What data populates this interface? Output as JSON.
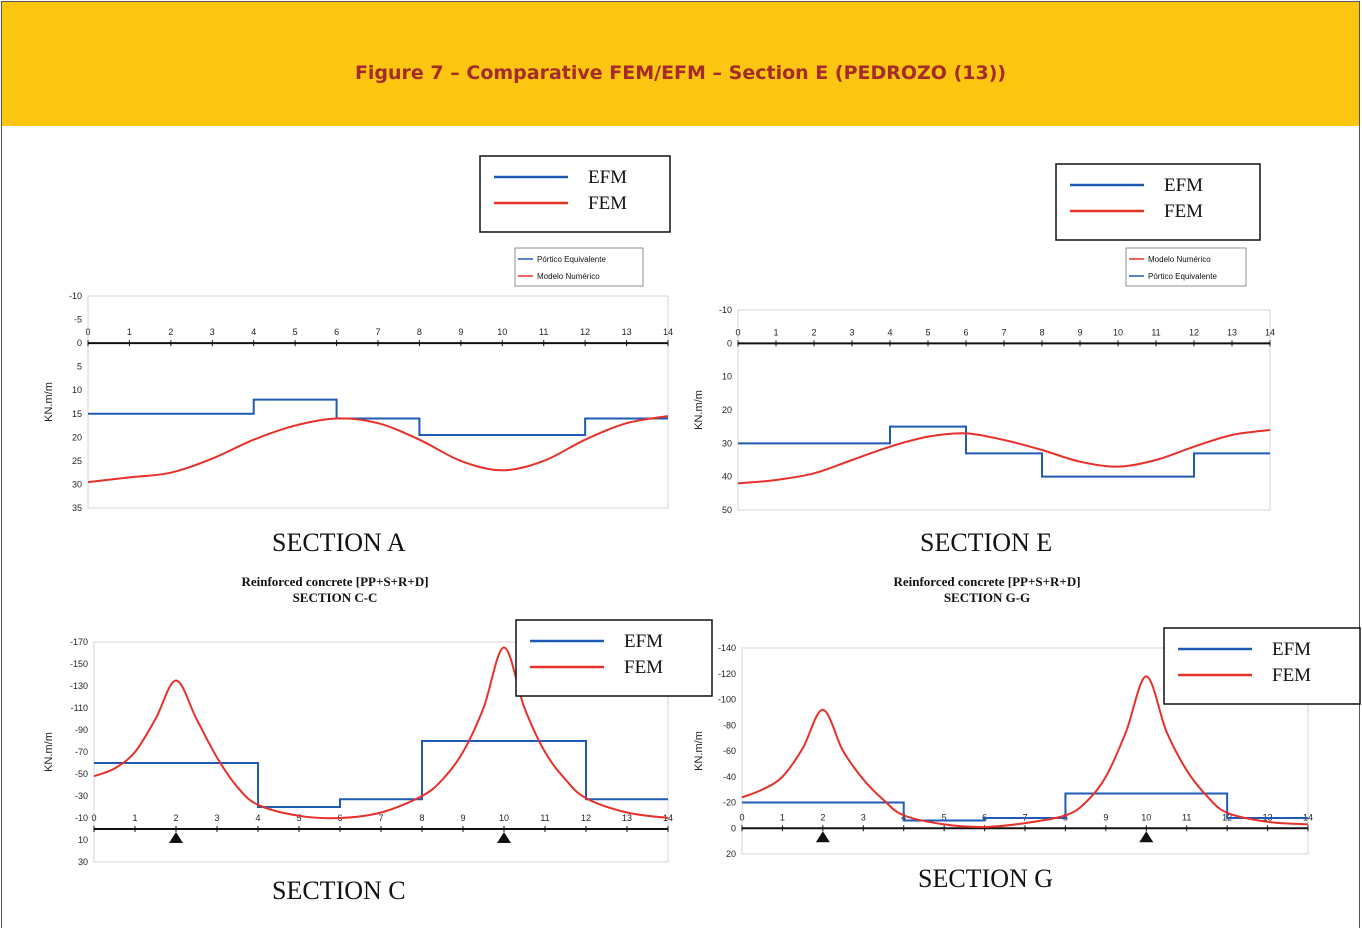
{
  "figure_title": "Figure 7 – Comparative FEM/EFM – Section E (PEDROZO (13))",
  "colors": {
    "efm": "#1f5bb5",
    "fem": "#e8302a",
    "banner": "#fcc50f",
    "title": "#a52a2a"
  },
  "chart_data": [
    {
      "id": "A",
      "type": "line",
      "section_label": "SECTION A",
      "ylabel": "KN.m/m",
      "ylim": [
        -10,
        35
      ],
      "yticks": [
        "-10",
        "-5",
        "0",
        "5",
        "10",
        "15",
        "20",
        "25",
        "30",
        "35"
      ],
      "xticks": [
        "0",
        "1",
        "2",
        "3",
        "4",
        "5",
        "6",
        "7",
        "8",
        "9",
        "10",
        "11",
        "12",
        "13",
        "14"
      ],
      "xlim": [
        0,
        14
      ],
      "legend": {
        "efm": "EFM",
        "fem": "FEM"
      },
      "legend_small": [
        "Pórtico Equivalente",
        "Modelo Numérico"
      ],
      "supports": [],
      "series": [
        {
          "name": "EFM",
          "x": [
            0,
            4,
            4,
            6,
            6,
            8,
            8,
            12,
            12,
            14
          ],
          "y": [
            15,
            15,
            12,
            12,
            16,
            16,
            19.5,
            19.5,
            16,
            16
          ]
        },
        {
          "name": "FEM",
          "x": [
            0,
            1,
            2,
            3,
            4,
            5,
            6,
            7,
            8,
            9,
            10,
            11,
            12,
            13,
            14
          ],
          "y": [
            29.5,
            28.5,
            27.5,
            24.5,
            20.5,
            17.5,
            16,
            17,
            20.5,
            25,
            27,
            25,
            20.5,
            17,
            15.5
          ]
        }
      ]
    },
    {
      "id": "E",
      "type": "line",
      "section_label": "SECTION E",
      "ylabel": "KN.m/m",
      "ylim": [
        -10,
        50
      ],
      "yticks": [
        "-10",
        "0",
        "10",
        "20",
        "30",
        "40",
        "50"
      ],
      "xticks": [
        "0",
        "1",
        "2",
        "3",
        "4",
        "5",
        "6",
        "7",
        "8",
        "9",
        "10",
        "11",
        "12",
        "13",
        "14"
      ],
      "xlim": [
        0,
        14
      ],
      "legend": {
        "efm": "EFM",
        "fem": "FEM"
      },
      "legend_small": [
        "Modelo Numérico",
        "Pórtico Equivalente"
      ],
      "supports": [],
      "series": [
        {
          "name": "EFM",
          "x": [
            0,
            4,
            4,
            6,
            6,
            8,
            8,
            12,
            12,
            14
          ],
          "y": [
            30,
            30,
            25,
            25,
            33,
            33,
            40,
            40,
            33,
            33
          ]
        },
        {
          "name": "FEM",
          "x": [
            0,
            1,
            2,
            3,
            4,
            5,
            6,
            7,
            8,
            9,
            10,
            11,
            12,
            13,
            14
          ],
          "y": [
            42,
            41,
            39,
            35,
            31,
            28,
            27,
            29,
            32,
            35.5,
            37,
            35,
            31,
            27.5,
            26
          ]
        }
      ]
    },
    {
      "id": "C",
      "type": "line",
      "section_label": "SECTION C",
      "title": "Reinforced concrete [PP+S+R+D]",
      "subtitle": "SECTION C-C",
      "ylabel": "KN.m/m",
      "ylim": [
        -170,
        30
      ],
      "yticks": [
        "-170",
        "-150",
        "-130",
        "-110",
        "-90",
        "-70",
        "-50",
        "-30",
        "-10",
        "10",
        "30"
      ],
      "xticks": [
        "0",
        "1",
        "2",
        "3",
        "4",
        "5",
        "6",
        "7",
        "8",
        "9",
        "10",
        "11",
        "12",
        "13",
        "14"
      ],
      "xlim": [
        0,
        14
      ],
      "legend": {
        "efm": "EFM",
        "fem": "FEM"
      },
      "legend_small": [],
      "supports": [
        2,
        10
      ],
      "series": [
        {
          "name": "EFM",
          "x": [
            0,
            4,
            4,
            6,
            6,
            8,
            8,
            12,
            12,
            14
          ],
          "y": [
            -60,
            -60,
            -20,
            -20,
            -27,
            -27,
            -80,
            -80,
            -27,
            -27
          ]
        },
        {
          "name": "FEM",
          "x": [
            0,
            0.5,
            1,
            1.5,
            2,
            2.5,
            3,
            3.5,
            4,
            5,
            6,
            7,
            8,
            8.5,
            9,
            9.5,
            10,
            10.5,
            11,
            11.5,
            12,
            13,
            14
          ],
          "y": [
            -48,
            -55,
            -70,
            -100,
            -135,
            -100,
            -65,
            -38,
            -22,
            -12,
            -10,
            -15,
            -30,
            -45,
            -70,
            -110,
            -165,
            -110,
            -70,
            -45,
            -28,
            -15,
            -10
          ]
        }
      ]
    },
    {
      "id": "G",
      "type": "line",
      "section_label": "SECTION G",
      "title": "Reinforced concrete [PP+S+R+D]",
      "subtitle": "SECTION G-G",
      "ylabel": "KN.m/m",
      "ylim": [
        -140,
        20
      ],
      "yticks": [
        "-140",
        "-120",
        "-100",
        "-80",
        "-60",
        "-40",
        "-20",
        "0",
        "20"
      ],
      "xticks": [
        "0",
        "1",
        "2",
        "3",
        "4",
        "5",
        "6",
        "7",
        "8",
        "9",
        "10",
        "11",
        "12",
        "13",
        "14"
      ],
      "xlim": [
        0,
        14
      ],
      "legend": {
        "efm": "EFM",
        "fem": "FEM"
      },
      "legend_small": [],
      "supports": [
        2,
        10
      ],
      "series": [
        {
          "name": "EFM",
          "x": [
            0,
            4,
            4,
            6,
            6,
            8,
            8,
            12,
            12,
            14
          ],
          "y": [
            -20,
            -20,
            -6,
            -6,
            -8,
            -8,
            -27,
            -27,
            -8,
            -8
          ]
        },
        {
          "name": "FEM",
          "x": [
            0,
            0.5,
            1,
            1.5,
            2,
            2.5,
            3,
            3.5,
            4,
            5,
            6,
            7,
            8,
            8.5,
            9,
            9.5,
            10,
            10.5,
            11,
            11.5,
            12,
            13,
            14
          ],
          "y": [
            -24,
            -30,
            -40,
            -62,
            -92,
            -60,
            -38,
            -22,
            -10,
            -3,
            -1,
            -4,
            -10,
            -20,
            -40,
            -75,
            -118,
            -75,
            -45,
            -25,
            -12,
            -5,
            -3
          ]
        }
      ]
    }
  ]
}
